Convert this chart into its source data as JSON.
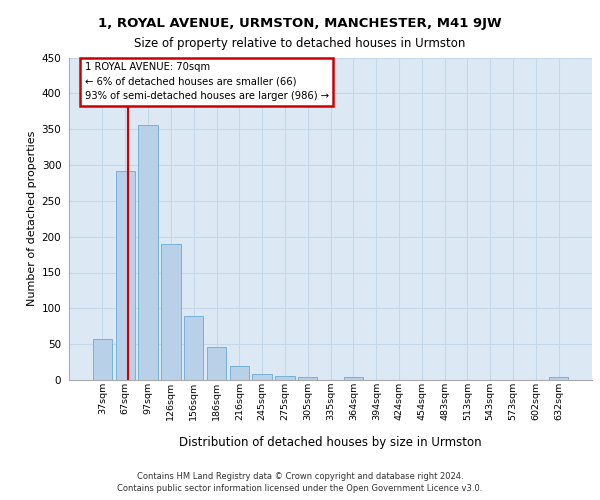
{
  "title": "1, ROYAL AVENUE, URMSTON, MANCHESTER, M41 9JW",
  "subtitle": "Size of property relative to detached houses in Urmston",
  "xlabel": "Distribution of detached houses by size in Urmston",
  "ylabel": "Number of detached properties",
  "footer_line1": "Contains HM Land Registry data © Crown copyright and database right 2024.",
  "footer_line2": "Contains public sector information licensed under the Open Government Licence v3.0.",
  "bin_labels": [
    "37sqm",
    "67sqm",
    "97sqm",
    "126sqm",
    "156sqm",
    "186sqm",
    "216sqm",
    "245sqm",
    "275sqm",
    "305sqm",
    "335sqm",
    "364sqm",
    "394sqm",
    "424sqm",
    "454sqm",
    "483sqm",
    "513sqm",
    "543sqm",
    "573sqm",
    "602sqm",
    "632sqm"
  ],
  "bar_values": [
    57,
    291,
    356,
    190,
    90,
    46,
    19,
    9,
    5,
    4,
    0,
    4,
    0,
    0,
    0,
    0,
    0,
    0,
    0,
    0,
    4
  ],
  "bar_color": "#b8d0e8",
  "bar_edge_color": "#6aaad4",
  "grid_color": "#c5d8ea",
  "background_color": "#dce9f5",
  "annotation_line1": "1 ROYAL AVENUE: 70sqm",
  "annotation_line2": "← 6% of detached houses are smaller (66)",
  "annotation_line3": "93% of semi-detached houses are larger (986) →",
  "annotation_box_color": "#ffffff",
  "annotation_border_color": "#cc0000",
  "vline_color": "#cc0000",
  "vline_x": 1.1,
  "ylim": [
    0,
    450
  ],
  "yticks": [
    0,
    50,
    100,
    150,
    200,
    250,
    300,
    350,
    400,
    450
  ]
}
